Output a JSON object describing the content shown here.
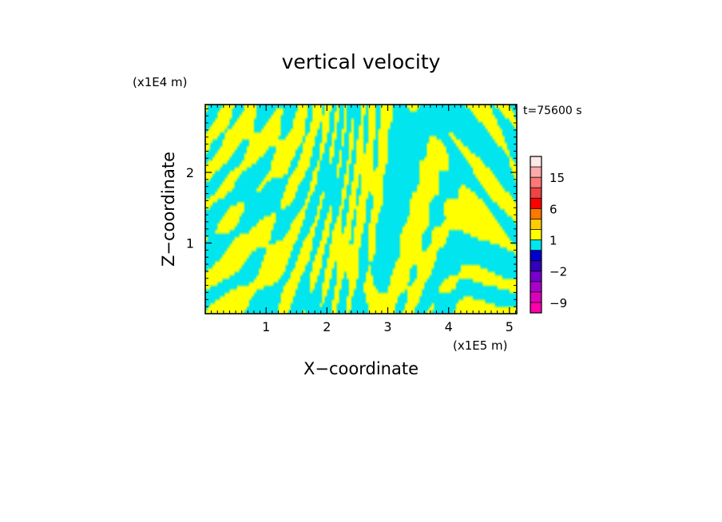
{
  "chart_data": {
    "type": "heatmap",
    "title": "vertical velocity",
    "xlabel": "X−coordinate",
    "ylabel": "Z−coordinate",
    "x_unit": "(x1E5 m)",
    "y_unit": "(x1E4 m)",
    "time_label": "t=75600 s",
    "xlim": [
      0,
      5.12
    ],
    "ylim": [
      0,
      2.96
    ],
    "x_ticks": [
      {
        "value": 1,
        "label": "1"
      },
      {
        "value": 2,
        "label": "2"
      },
      {
        "value": 3,
        "label": "3"
      },
      {
        "value": 4,
        "label": "4"
      },
      {
        "value": 5,
        "label": "5"
      }
    ],
    "y_ticks": [
      {
        "value": 1,
        "label": "1"
      },
      {
        "value": 2,
        "label": "2"
      }
    ],
    "field": {
      "dominant_colors": {
        "positive": "#ffff00",
        "negative": "#00e5ee"
      },
      "grid_nx": 128,
      "grid_nz": 60
    },
    "colorbar": {
      "levels": [
        -12,
        -9,
        -6,
        -4,
        -2,
        -1,
        0,
        1,
        2,
        4,
        6,
        9,
        12,
        15,
        20,
        25
      ],
      "colors": [
        "#ff00aa",
        "#dd00bb",
        "#aa00cc",
        "#7700cc",
        "#3300bb",
        "#0000cc",
        "#00e5ee",
        "#ffff00",
        "#ffcc00",
        "#ff7700",
        "#ff0000",
        "#ee4444",
        "#ff7777",
        "#ffaaaa",
        "#ffe8e8"
      ],
      "labels": [
        {
          "value": -9,
          "text": "−9"
        },
        {
          "value": -2,
          "text": "−2"
        },
        {
          "value": 1,
          "text": "1"
        },
        {
          "value": 6,
          "text": "6"
        },
        {
          "value": 15,
          "text": "15"
        }
      ]
    }
  }
}
